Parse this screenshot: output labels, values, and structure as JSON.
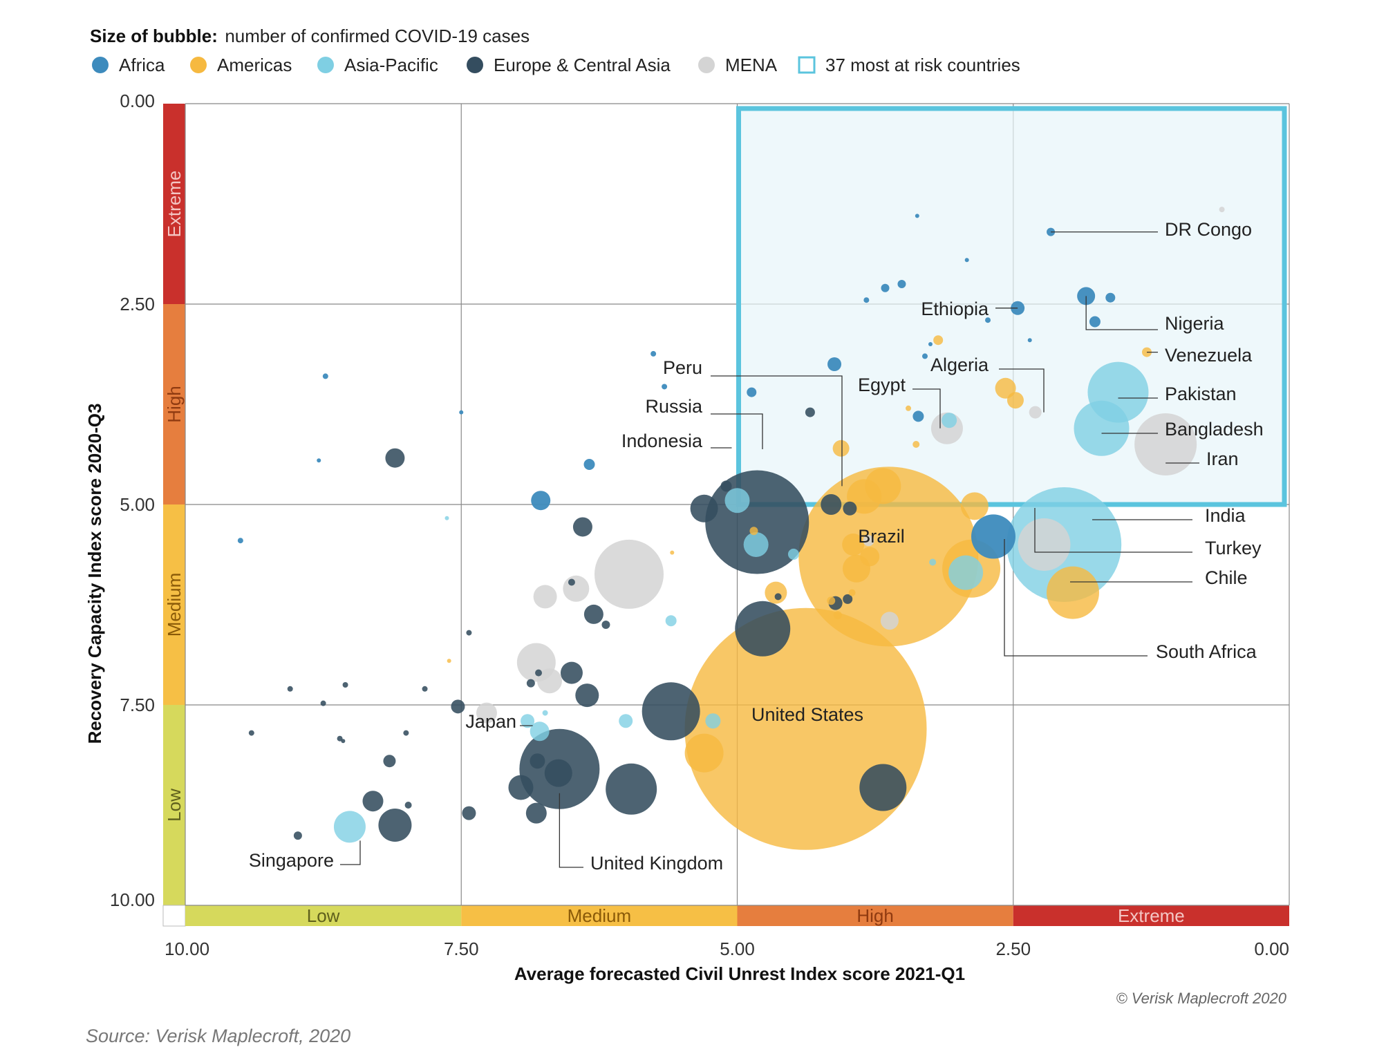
{
  "chart_data": {
    "type": "scatter",
    "subtype": "bubble",
    "size_label": {
      "bold": "Size of bubble:",
      "text": "number of confirmed COVID-19 cases"
    },
    "legend": [
      {
        "name": "Africa",
        "color": "#3d8bbd"
      },
      {
        "name": "Americas",
        "color": "#f6b940"
      },
      {
        "name": "Asia-Pacific",
        "color": "#7fcfe3"
      },
      {
        "name": "Europe & Central Asia",
        "color": "#344d5f"
      },
      {
        "name": "MENA",
        "color": "#d4d4d4"
      },
      {
        "name": "37 most at risk countries",
        "color": "#5bc4de",
        "style": "outline"
      }
    ],
    "xlabel": "Average forecasted Civil Unrest Index score 2021-Q1",
    "ylabel": "Recovery Capacity Index score 2020-Q3",
    "xlim": [
      10,
      0
    ],
    "ylim": [
      0,
      10
    ],
    "x_ticks": [
      "10.00",
      "7.50",
      "5.00",
      "2.50",
      "0.00"
    ],
    "y_ticks": [
      "0.00",
      "2.50",
      "5.00",
      "7.50",
      "10.00"
    ],
    "grid": true,
    "risk_box": {
      "x": [
        0,
        5
      ],
      "y": [
        0,
        5
      ]
    },
    "x_bands": [
      {
        "label": "Low",
        "from": 10,
        "to": 7.5,
        "color": "#d6d95c",
        "text_color": "#5e5f1c"
      },
      {
        "label": "Medium",
        "from": 7.5,
        "to": 5,
        "color": "#f6bf45",
        "text_color": "#8a5a08"
      },
      {
        "label": "High",
        "from": 5,
        "to": 2.5,
        "color": "#e67e3e",
        "text_color": "#8f3a10"
      },
      {
        "label": "Extreme",
        "from": 2.5,
        "to": 0,
        "color": "#c9302c",
        "text_color": "#f4c6c4"
      }
    ],
    "y_bands": [
      {
        "label": "Extreme",
        "from": 0,
        "to": 2.5,
        "color": "#c9302c",
        "text_color": "#f4c6c4"
      },
      {
        "label": "High",
        "from": 2.5,
        "to": 5,
        "color": "#e67e3e",
        "text_color": "#8f3a10"
      },
      {
        "label": "Medium",
        "from": 5,
        "to": 7.5,
        "color": "#f6bf45",
        "text_color": "#8a5a08"
      },
      {
        "label": "Low",
        "from": 7.5,
        "to": 10,
        "color": "#d6d95c",
        "text_color": "#5e5f1c"
      }
    ],
    "labeled_points": [
      {
        "name": "DR Congo",
        "region": "Africa",
        "x": 2.16,
        "y": 1.6,
        "r": 6
      },
      {
        "name": "Ethiopia",
        "region": "Africa",
        "x": 2.46,
        "y": 2.55,
        "r": 10
      },
      {
        "name": "Nigeria",
        "region": "Africa",
        "x": 1.84,
        "y": 2.4,
        "r": 13
      },
      {
        "name": "Venezuela",
        "region": "Americas",
        "x": 1.29,
        "y": 3.1,
        "r": 7
      },
      {
        "name": "Algeria",
        "region": "MENA",
        "x": 2.3,
        "y": 3.85,
        "r": 9
      },
      {
        "name": "Egypt",
        "region": "MENA",
        "x": 3.1,
        "y": 4.05,
        "r": 23
      },
      {
        "name": "Peru",
        "region": "Americas",
        "x": 3.68,
        "y": 4.77,
        "r": 26
      },
      {
        "name": "Russia",
        "region": "Europe & Central Asia",
        "x": 4.82,
        "y": 5.22,
        "r": 75
      },
      {
        "name": "Indonesia",
        "region": "Asia-Pacific",
        "x": 5.0,
        "y": 4.95,
        "r": 18
      },
      {
        "name": "Pakistan",
        "region": "Asia-Pacific",
        "x": 1.55,
        "y": 3.6,
        "r": 44
      },
      {
        "name": "Bangladesh",
        "region": "Asia-Pacific",
        "x": 1.7,
        "y": 4.05,
        "r": 40
      },
      {
        "name": "Iran",
        "region": "MENA",
        "x": 1.12,
        "y": 4.25,
        "r": 45
      },
      {
        "name": "India",
        "region": "Asia-Pacific",
        "x": 2.04,
        "y": 5.5,
        "r": 83
      },
      {
        "name": "Turkey",
        "region": "MENA",
        "x": 2.22,
        "y": 5.5,
        "r": 38
      },
      {
        "name": "Chile",
        "region": "Americas",
        "x": 1.96,
        "y": 6.1,
        "r": 38
      },
      {
        "name": "Brazil",
        "region": "Americas",
        "x": 3.63,
        "y": 5.65,
        "r": 130
      },
      {
        "name": "South Africa",
        "region": "Africa",
        "x": 2.68,
        "y": 5.4,
        "r": 32
      },
      {
        "name": "United States",
        "region": "Americas",
        "x": 4.38,
        "y": 7.8,
        "r": 175
      },
      {
        "name": "Japan",
        "region": "Asia-Pacific",
        "x": 6.79,
        "y": 7.83,
        "r": 14
      },
      {
        "name": "United Kingdom",
        "region": "Europe & Central Asia",
        "x": 6.61,
        "y": 8.3,
        "r": 58
      },
      {
        "name": "Singapore",
        "region": "Asia-Pacific",
        "x": 8.51,
        "y": 9.02,
        "r": 23
      }
    ],
    "other_points": [
      {
        "region": "Africa",
        "x": 8.73,
        "y": 3.4,
        "r": 4
      },
      {
        "region": "Africa",
        "x": 8.79,
        "y": 4.45,
        "r": 3
      },
      {
        "region": "Africa",
        "x": 6.78,
        "y": 4.95,
        "r": 14
      },
      {
        "region": "Africa",
        "x": 6.34,
        "y": 4.5,
        "r": 8
      },
      {
        "region": "Africa",
        "x": 5.76,
        "y": 3.12,
        "r": 4
      },
      {
        "region": "Africa",
        "x": 5.66,
        "y": 3.53,
        "r": 4
      },
      {
        "region": "Africa",
        "x": 4.87,
        "y": 3.6,
        "r": 7
      },
      {
        "region": "Africa",
        "x": 4.12,
        "y": 3.25,
        "r": 10
      },
      {
        "region": "Africa",
        "x": 3.66,
        "y": 2.3,
        "r": 6
      },
      {
        "region": "Africa",
        "x": 3.83,
        "y": 2.45,
        "r": 4
      },
      {
        "region": "Africa",
        "x": 3.51,
        "y": 2.25,
        "r": 6
      },
      {
        "region": "Africa",
        "x": 3.37,
        "y": 1.4,
        "r": 3
      },
      {
        "region": "Africa",
        "x": 2.92,
        "y": 1.95,
        "r": 3
      },
      {
        "region": "Africa",
        "x": 2.73,
        "y": 2.7,
        "r": 4
      },
      {
        "region": "Africa",
        "x": 2.35,
        "y": 2.95,
        "r": 3
      },
      {
        "region": "Africa",
        "x": 1.76,
        "y": 2.72,
        "r": 8
      },
      {
        "region": "Africa",
        "x": 1.62,
        "y": 2.42,
        "r": 7
      },
      {
        "region": "Africa",
        "x": 3.3,
        "y": 3.15,
        "r": 4
      },
      {
        "region": "Africa",
        "x": 3.25,
        "y": 3.0,
        "r": 3
      },
      {
        "region": "Africa",
        "x": 3.36,
        "y": 3.9,
        "r": 8
      },
      {
        "region": "Africa",
        "x": 9.5,
        "y": 5.45,
        "r": 4
      },
      {
        "region": "Africa",
        "x": 7.5,
        "y": 3.85,
        "r": 3
      },
      {
        "region": "Americas",
        "x": 3.18,
        "y": 2.95,
        "r": 7
      },
      {
        "region": "Americas",
        "x": 2.57,
        "y": 3.55,
        "r": 15
      },
      {
        "region": "Americas",
        "x": 2.48,
        "y": 3.7,
        "r": 12
      },
      {
        "region": "Americas",
        "x": 4.06,
        "y": 4.3,
        "r": 12
      },
      {
        "region": "Americas",
        "x": 3.45,
        "y": 3.8,
        "r": 4
      },
      {
        "region": "Americas",
        "x": 3.38,
        "y": 4.25,
        "r": 5
      },
      {
        "region": "Americas",
        "x": 3.95,
        "y": 5.5,
        "r": 16
      },
      {
        "region": "Americas",
        "x": 3.85,
        "y": 4.9,
        "r": 25
      },
      {
        "region": "Americas",
        "x": 3.8,
        "y": 5.65,
        "r": 14
      },
      {
        "region": "Americas",
        "x": 3.92,
        "y": 5.8,
        "r": 20
      },
      {
        "region": "Americas",
        "x": 2.88,
        "y": 5.8,
        "r": 42
      },
      {
        "region": "Americas",
        "x": 2.85,
        "y": 5.02,
        "r": 20
      },
      {
        "region": "Americas",
        "x": 4.65,
        "y": 6.1,
        "r": 16
      },
      {
        "region": "Americas",
        "x": 4.85,
        "y": 5.33,
        "r": 6
      },
      {
        "region": "Americas",
        "x": 4.15,
        "y": 6.2,
        "r": 6
      },
      {
        "region": "Americas",
        "x": 3.96,
        "y": 6.1,
        "r": 5
      },
      {
        "region": "Americas",
        "x": 5.3,
        "y": 8.1,
        "r": 28
      },
      {
        "region": "Americas",
        "x": 5.59,
        "y": 5.6,
        "r": 3
      },
      {
        "region": "Americas",
        "x": 7.61,
        "y": 6.95,
        "r": 3
      },
      {
        "region": "Americas",
        "x": 4.09,
        "y": 6.38,
        "r": 6
      },
      {
        "region": "Asia-Pacific",
        "x": 3.08,
        "y": 3.95,
        "r": 11
      },
      {
        "region": "Asia-Pacific",
        "x": 4.83,
        "y": 5.5,
        "r": 18
      },
      {
        "region": "Asia-Pacific",
        "x": 4.49,
        "y": 5.62,
        "r": 8
      },
      {
        "region": "Asia-Pacific",
        "x": 3.23,
        "y": 5.72,
        "r": 5
      },
      {
        "region": "Asia-Pacific",
        "x": 2.93,
        "y": 5.85,
        "r": 25
      },
      {
        "region": "Asia-Pacific",
        "x": 5.6,
        "y": 6.45,
        "r": 8
      },
      {
        "region": "Asia-Pacific",
        "x": 6.9,
        "y": 7.7,
        "r": 10
      },
      {
        "region": "Asia-Pacific",
        "x": 6.74,
        "y": 7.6,
        "r": 4
      },
      {
        "region": "Asia-Pacific",
        "x": 6.01,
        "y": 7.7,
        "r": 10
      },
      {
        "region": "Asia-Pacific",
        "x": 5.22,
        "y": 7.7,
        "r": 11
      },
      {
        "region": "Asia-Pacific",
        "x": 7.63,
        "y": 5.17,
        "r": 3
      },
      {
        "region": "Europe & Central Asia",
        "x": 8.1,
        "y": 4.42,
        "r": 14
      },
      {
        "region": "Europe & Central Asia",
        "x": 6.4,
        "y": 5.28,
        "r": 14
      },
      {
        "region": "Europe & Central Asia",
        "x": 5.3,
        "y": 5.05,
        "r": 20
      },
      {
        "region": "Europe & Central Asia",
        "x": 5.1,
        "y": 4.77,
        "r": 8
      },
      {
        "region": "Europe & Central Asia",
        "x": 4.34,
        "y": 3.85,
        "r": 7
      },
      {
        "region": "Europe & Central Asia",
        "x": 4.15,
        "y": 5.0,
        "r": 15
      },
      {
        "region": "Europe & Central Asia",
        "x": 3.98,
        "y": 5.05,
        "r": 10
      },
      {
        "region": "Europe & Central Asia",
        "x": 4.63,
        "y": 6.15,
        "r": 5
      },
      {
        "region": "Europe & Central Asia",
        "x": 4.77,
        "y": 6.55,
        "r": 40
      },
      {
        "region": "Europe & Central Asia",
        "x": 4.11,
        "y": 6.23,
        "r": 10
      },
      {
        "region": "Europe & Central Asia",
        "x": 4.0,
        "y": 6.18,
        "r": 7
      },
      {
        "region": "Europe & Central Asia",
        "x": 5.6,
        "y": 7.58,
        "r": 42
      },
      {
        "region": "Europe & Central Asia",
        "x": 3.68,
        "y": 8.53,
        "r": 34
      },
      {
        "region": "Europe & Central Asia",
        "x": 5.96,
        "y": 8.55,
        "r": 37
      },
      {
        "region": "Europe & Central Asia",
        "x": 6.62,
        "y": 8.35,
        "r": 20
      },
      {
        "region": "Europe & Central Asia",
        "x": 6.96,
        "y": 8.53,
        "r": 18
      },
      {
        "region": "Europe & Central Asia",
        "x": 6.82,
        "y": 8.85,
        "r": 15
      },
      {
        "region": "Europe & Central Asia",
        "x": 6.81,
        "y": 8.2,
        "r": 11
      },
      {
        "region": "Europe & Central Asia",
        "x": 6.3,
        "y": 6.37,
        "r": 14
      },
      {
        "region": "Europe & Central Asia",
        "x": 6.19,
        "y": 6.5,
        "r": 6
      },
      {
        "region": "Europe & Central Asia",
        "x": 6.5,
        "y": 5.97,
        "r": 5
      },
      {
        "region": "Europe & Central Asia",
        "x": 6.5,
        "y": 7.1,
        "r": 16
      },
      {
        "region": "Europe & Central Asia",
        "x": 6.36,
        "y": 7.38,
        "r": 17
      },
      {
        "region": "Europe & Central Asia",
        "x": 6.87,
        "y": 7.23,
        "r": 6
      },
      {
        "region": "Europe & Central Asia",
        "x": 6.8,
        "y": 7.1,
        "r": 5
      },
      {
        "region": "Europe & Central Asia",
        "x": 7.53,
        "y": 7.52,
        "r": 10
      },
      {
        "region": "Europe & Central Asia",
        "x": 7.43,
        "y": 8.85,
        "r": 10
      },
      {
        "region": "Europe & Central Asia",
        "x": 7.43,
        "y": 6.6,
        "r": 4
      },
      {
        "region": "Europe & Central Asia",
        "x": 7.83,
        "y": 7.3,
        "r": 4
      },
      {
        "region": "Europe & Central Asia",
        "x": 8.0,
        "y": 7.85,
        "r": 4
      },
      {
        "region": "Europe & Central Asia",
        "x": 7.98,
        "y": 8.75,
        "r": 5
      },
      {
        "region": "Europe & Central Asia",
        "x": 8.1,
        "y": 9.0,
        "r": 24
      },
      {
        "region": "Europe & Central Asia",
        "x": 8.3,
        "y": 8.7,
        "r": 15
      },
      {
        "region": "Europe & Central Asia",
        "x": 8.15,
        "y": 8.2,
        "r": 9
      },
      {
        "region": "Europe & Central Asia",
        "x": 8.6,
        "y": 7.92,
        "r": 4
      },
      {
        "region": "Europe & Central Asia",
        "x": 8.75,
        "y": 7.48,
        "r": 4
      },
      {
        "region": "Europe & Central Asia",
        "x": 8.55,
        "y": 7.25,
        "r": 4
      },
      {
        "region": "Europe & Central Asia",
        "x": 9.05,
        "y": 7.3,
        "r": 4
      },
      {
        "region": "Europe & Central Asia",
        "x": 9.4,
        "y": 7.85,
        "r": 4
      },
      {
        "region": "Europe & Central Asia",
        "x": 8.98,
        "y": 9.13,
        "r": 6
      },
      {
        "region": "Europe & Central Asia",
        "x": 8.57,
        "y": 7.95,
        "r": 3
      },
      {
        "region": "MENA",
        "x": 0.61,
        "y": 1.32,
        "r": 4
      },
      {
        "region": "MENA",
        "x": 5.98,
        "y": 5.87,
        "r": 50
      },
      {
        "region": "MENA",
        "x": 6.46,
        "y": 6.05,
        "r": 19
      },
      {
        "region": "MENA",
        "x": 6.74,
        "y": 6.15,
        "r": 17
      },
      {
        "region": "MENA",
        "x": 6.82,
        "y": 6.97,
        "r": 28
      },
      {
        "region": "MENA",
        "x": 6.7,
        "y": 7.2,
        "r": 18
      },
      {
        "region": "MENA",
        "x": 7.27,
        "y": 7.6,
        "r": 15
      },
      {
        "region": "MENA",
        "x": 3.62,
        "y": 6.45,
        "r": 13
      },
      {
        "region": "MENA",
        "x": 3.81,
        "y": 5.45,
        "r": 8
      }
    ],
    "credit": "© Verisk Maplecroft 2020",
    "source": "Source: Verisk Maplecroft, 2020"
  }
}
